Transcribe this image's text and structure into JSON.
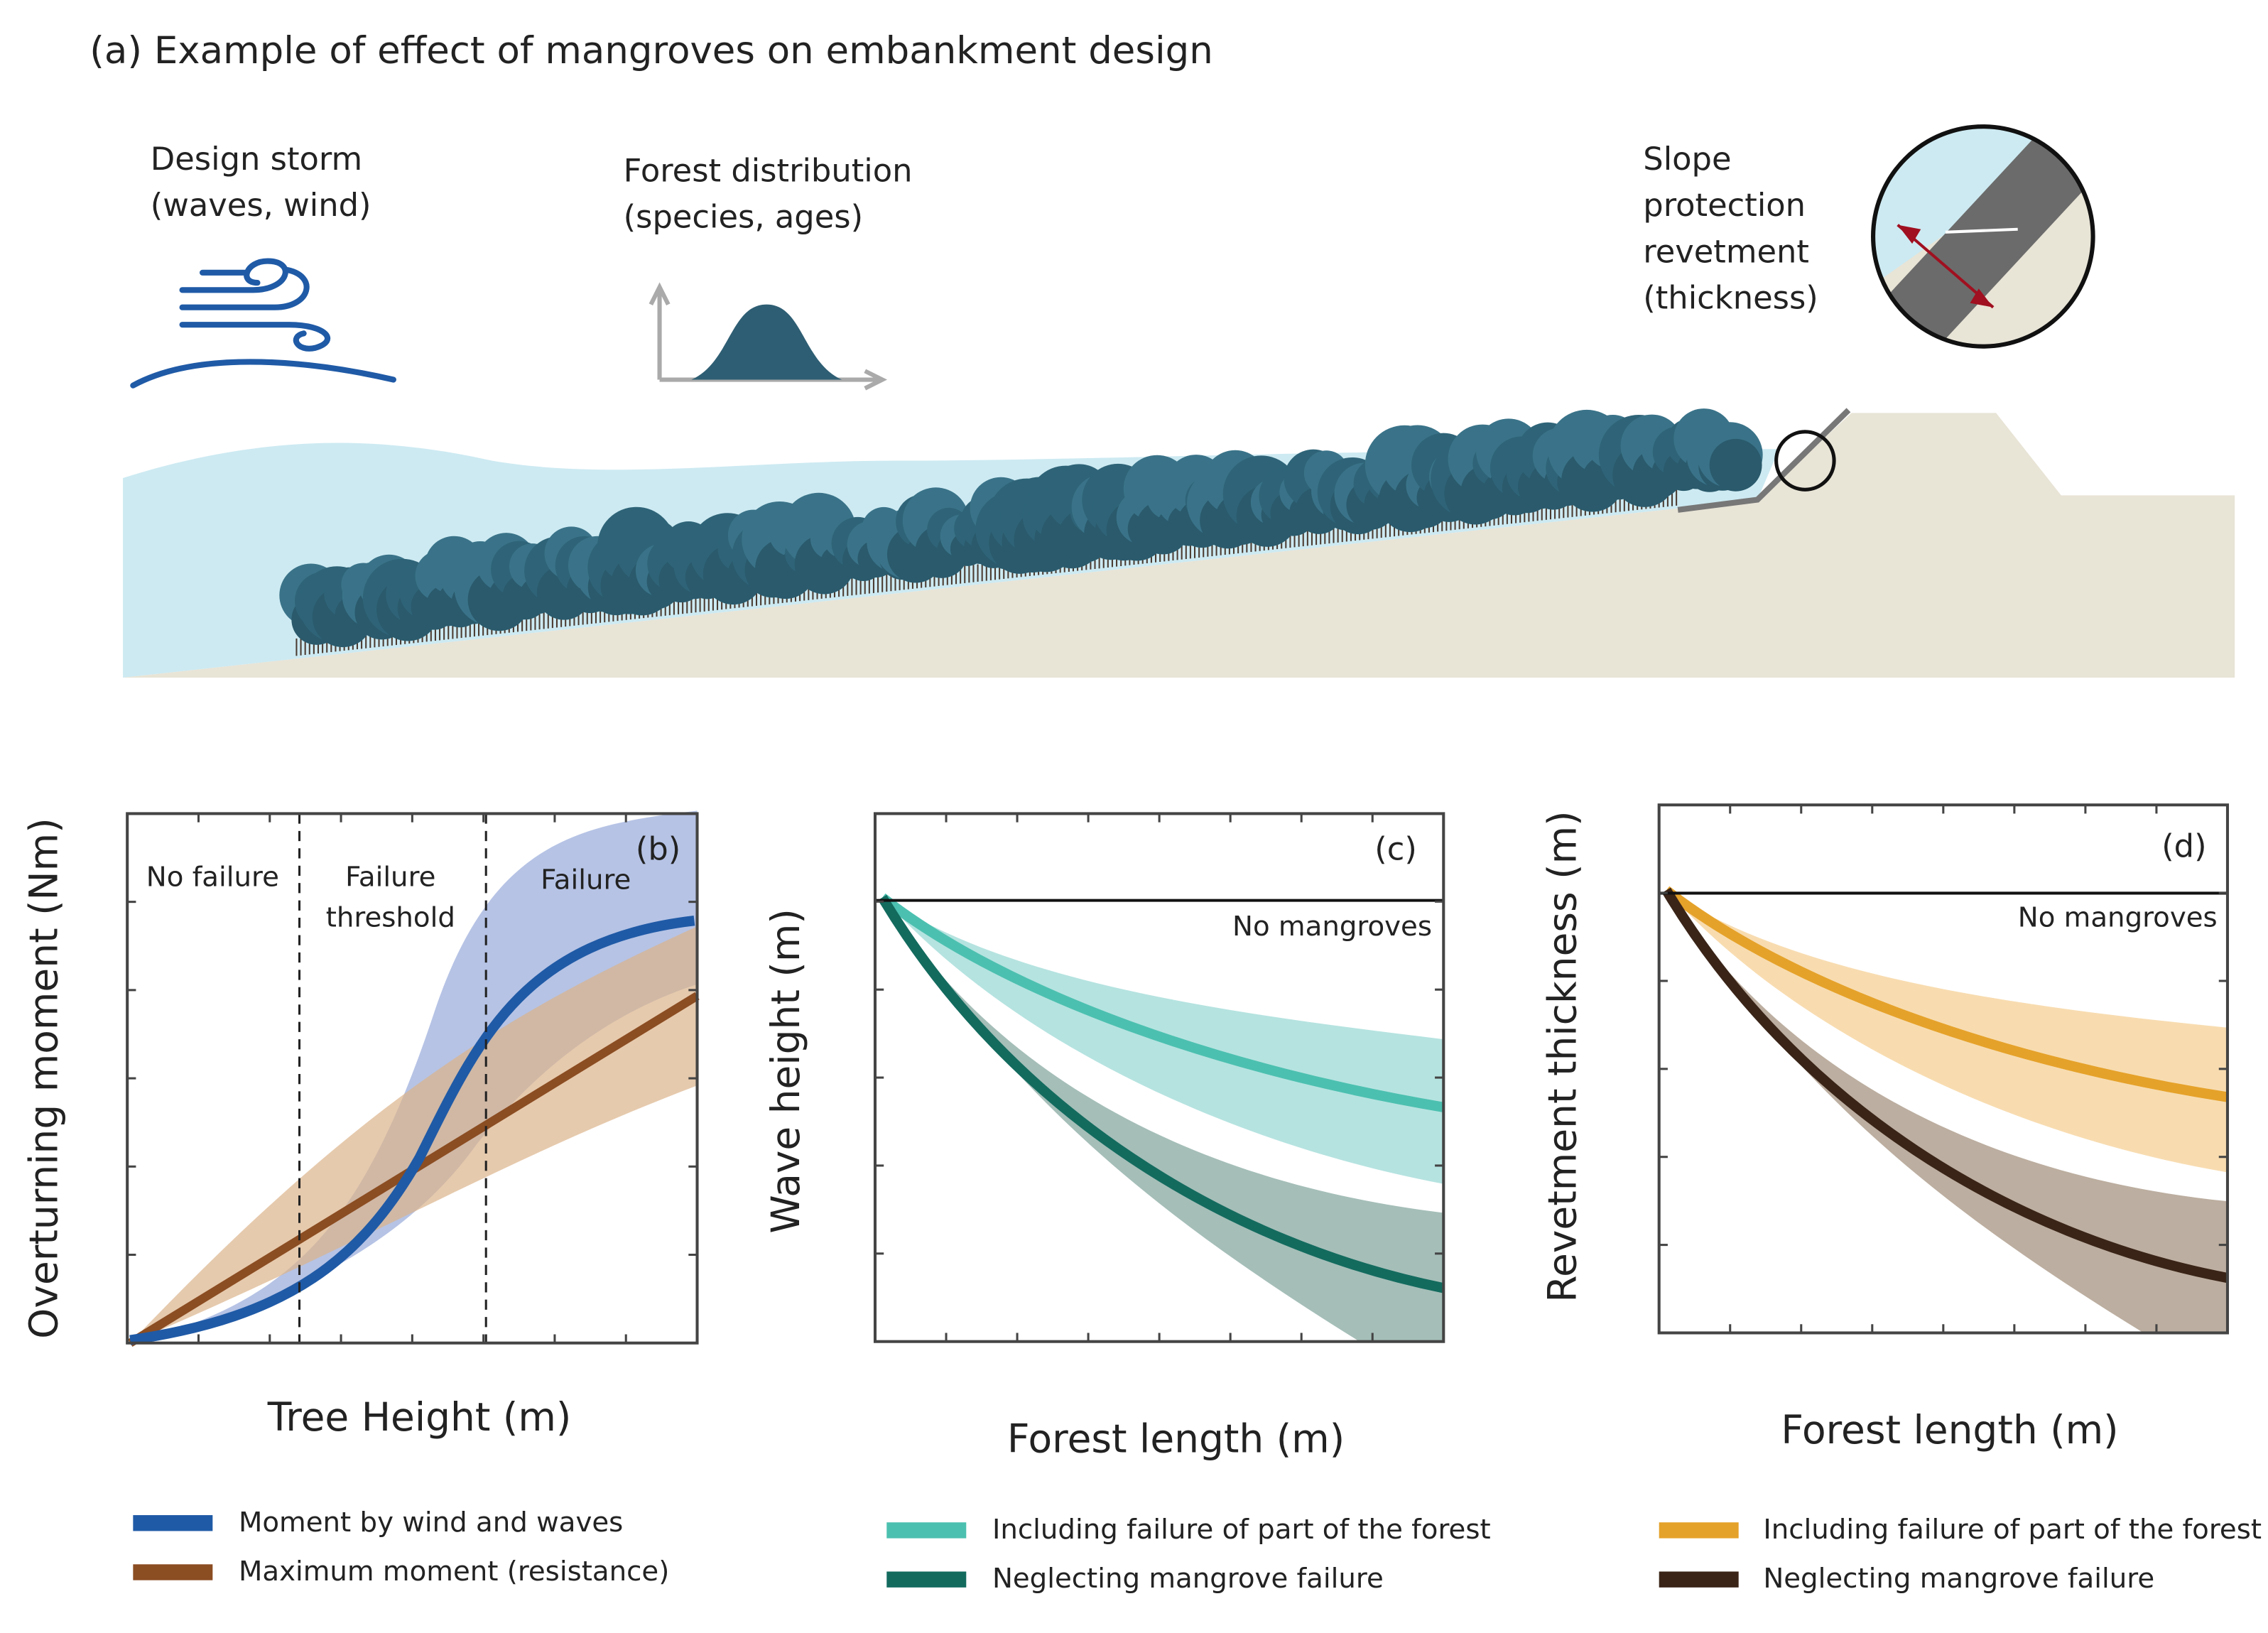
{
  "panel_a": {
    "title": "(a) Example of effect of mangroves on embankment design",
    "design_storm": [
      "Design storm",
      "(waves, wind)"
    ],
    "forest_distribution": [
      "Forest distribution",
      "(species, ages)"
    ],
    "slope_protection": [
      "Slope",
      "protection",
      "revetment",
      "(thickness)"
    ]
  },
  "panel_b": {
    "label": "(b)",
    "y_label": "Overturning moment (Nm)",
    "x_label": "Tree Height (m)",
    "regions": [
      [
        "No failure"
      ],
      [
        "Failure",
        "threshold"
      ],
      [
        "Failure"
      ]
    ],
    "legend": [
      "Moment by wind and waves",
      "Maximum moment (resistance)"
    ]
  },
  "panel_c": {
    "label": "(c)",
    "y_label": "Wave height (m)",
    "x_label": "Forest length (m)",
    "reference": "No mangroves",
    "legend": [
      "Including failure of part of the forest",
      "Neglecting mangrove failure"
    ]
  },
  "panel_d": {
    "label": "(d)",
    "y_label": "Revetment thickness (m)",
    "x_label": "Forest length (m)",
    "reference": "No mangroves",
    "legend": [
      "Including failure of part of the forest",
      "Neglecting mangrove failure"
    ]
  }
}
